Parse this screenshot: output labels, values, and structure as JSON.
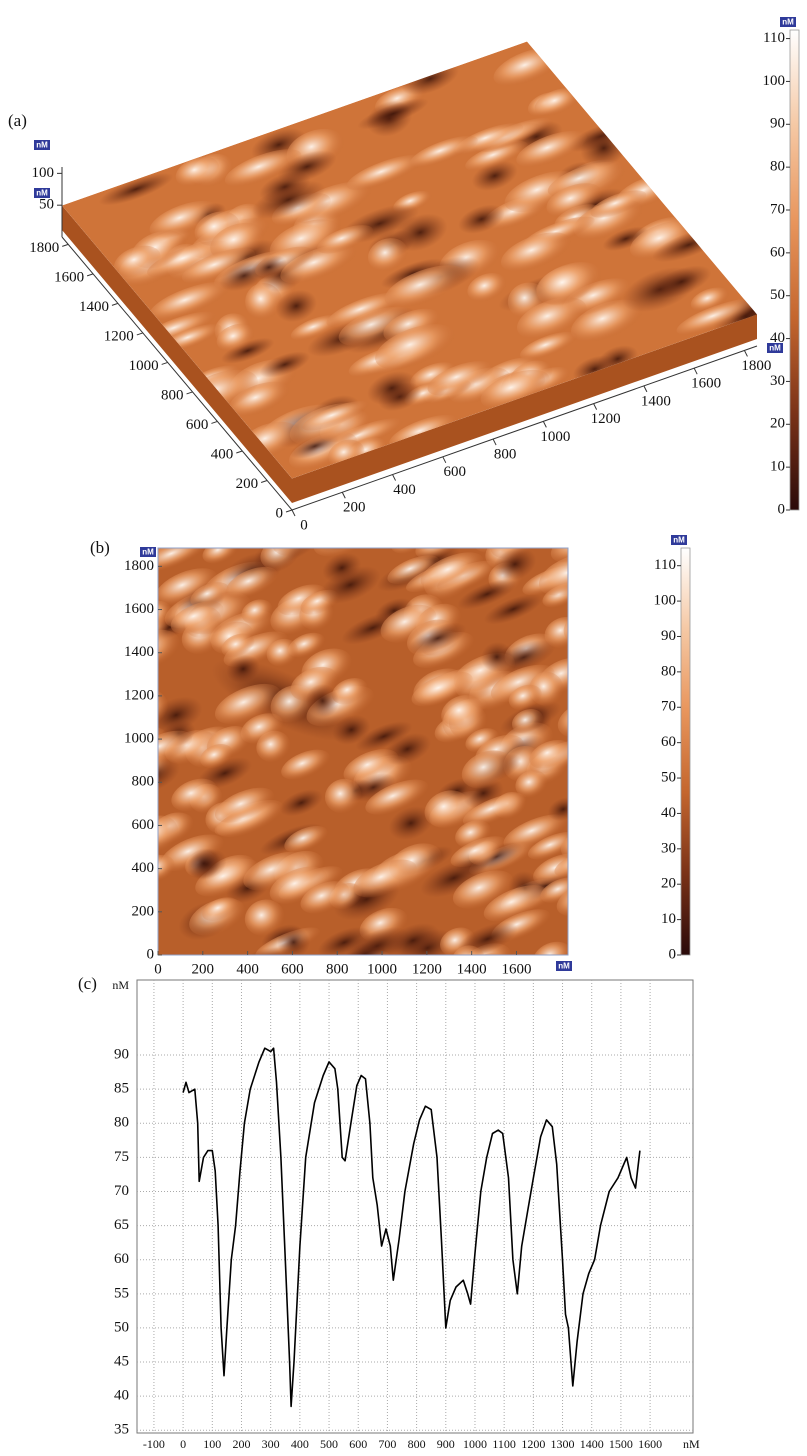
{
  "chart_data": [
    {
      "type": "surface3d",
      "label": "(a)",
      "x_unit": "nM",
      "y_unit": "nM",
      "z_unit": "nM",
      "xlim": [
        0,
        1850
      ],
      "ylim": [
        0,
        1850
      ],
      "zlim": [
        0,
        110
      ],
      "xticks": [
        0,
        200,
        400,
        600,
        800,
        1000,
        1200,
        1400,
        1600,
        1800
      ],
      "yticks": [
        0,
        200,
        400,
        600,
        800,
        1000,
        1200,
        1400,
        1600,
        1800
      ],
      "zticks": [
        50,
        100
      ],
      "colors": [
        "#2a0a0a",
        "#7a3218",
        "#c4662e",
        "#e8955c",
        "#f5c8a4",
        "#ffffff"
      ],
      "colorbar": {
        "unit": "nM",
        "lim": [
          0,
          112
        ],
        "ticks": [
          0,
          10,
          20,
          30,
          40,
          50,
          60,
          70,
          80,
          90,
          100,
          110
        ]
      }
    },
    {
      "type": "heatmap",
      "label": "(b)",
      "x_unit": "nM",
      "y_unit": "nM",
      "xlim": [
        0,
        1830
      ],
      "ylim": [
        0,
        1885
      ],
      "xticks": [
        0,
        200,
        400,
        600,
        800,
        1000,
        1200,
        1400,
        1600
      ],
      "yticks": [
        0,
        200,
        400,
        600,
        800,
        1000,
        1200,
        1400,
        1600,
        1800
      ],
      "colors": [
        "#2a0a0a",
        "#7a3218",
        "#c4662e",
        "#e8955c",
        "#f5c8a4",
        "#ffffff"
      ],
      "colorbar": {
        "unit": "nM",
        "lim": [
          0,
          115
        ],
        "ticks": [
          0,
          10,
          20,
          30,
          40,
          50,
          60,
          70,
          80,
          90,
          100,
          110
        ]
      }
    },
    {
      "type": "line",
      "label": "(c)",
      "x_unit": "nM",
      "y_unit": "nM",
      "color": "#000000",
      "grid": true,
      "xlim": [
        -158,
        1747
      ],
      "ylim": [
        34.6,
        101
      ],
      "xticks": [
        -100,
        0,
        100,
        200,
        300,
        400,
        500,
        600,
        700,
        800,
        900,
        1000,
        1100,
        1200,
        1300,
        1400,
        1500,
        1600
      ],
      "yticks": [
        35,
        40,
        45,
        50,
        55,
        60,
        65,
        70,
        75,
        80,
        85,
        90
      ],
      "x": [
        0,
        10,
        20,
        40,
        50,
        55,
        70,
        85,
        100,
        110,
        120,
        130,
        140,
        150,
        165,
        180,
        195,
        210,
        230,
        260,
        280,
        300,
        310,
        320,
        335,
        350,
        365,
        370,
        380,
        400,
        420,
        450,
        480,
        500,
        520,
        530,
        545,
        555,
        575,
        595,
        610,
        625,
        640,
        650,
        665,
        680,
        695,
        710,
        720,
        740,
        760,
        790,
        810,
        830,
        850,
        870,
        885,
        900,
        915,
        935,
        960,
        975,
        985,
        1000,
        1020,
        1040,
        1060,
        1080,
        1095,
        1115,
        1130,
        1145,
        1160,
        1180,
        1200,
        1225,
        1245,
        1265,
        1280,
        1300,
        1310,
        1320,
        1335,
        1350,
        1370,
        1390,
        1410,
        1430,
        1460,
        1490,
        1510,
        1520,
        1535,
        1550,
        1565
      ],
      "values": [
        84.5,
        86,
        84.5,
        85,
        80,
        71.5,
        75,
        76,
        76,
        73,
        65,
        50,
        43,
        50,
        60,
        65,
        73,
        80,
        85,
        89,
        91,
        90.5,
        91,
        86,
        75,
        60,
        45,
        38.5,
        45,
        62,
        75,
        83,
        87,
        89,
        88,
        85,
        75,
        74.5,
        80,
        85.5,
        87,
        86.5,
        80,
        72,
        68,
        62,
        64.5,
        62,
        57,
        63,
        70,
        77,
        80.5,
        82.5,
        82,
        75,
        63,
        50,
        54,
        56,
        57,
        55,
        53.5,
        61,
        70,
        75,
        78.5,
        79,
        78.5,
        72,
        60,
        55,
        62,
        67,
        72,
        78,
        80.5,
        79.5,
        74,
        60,
        52,
        50,
        41.5,
        48,
        55,
        58,
        60,
        65,
        70,
        72,
        74,
        75,
        72,
        70.5,
        76
      ]
    }
  ]
}
